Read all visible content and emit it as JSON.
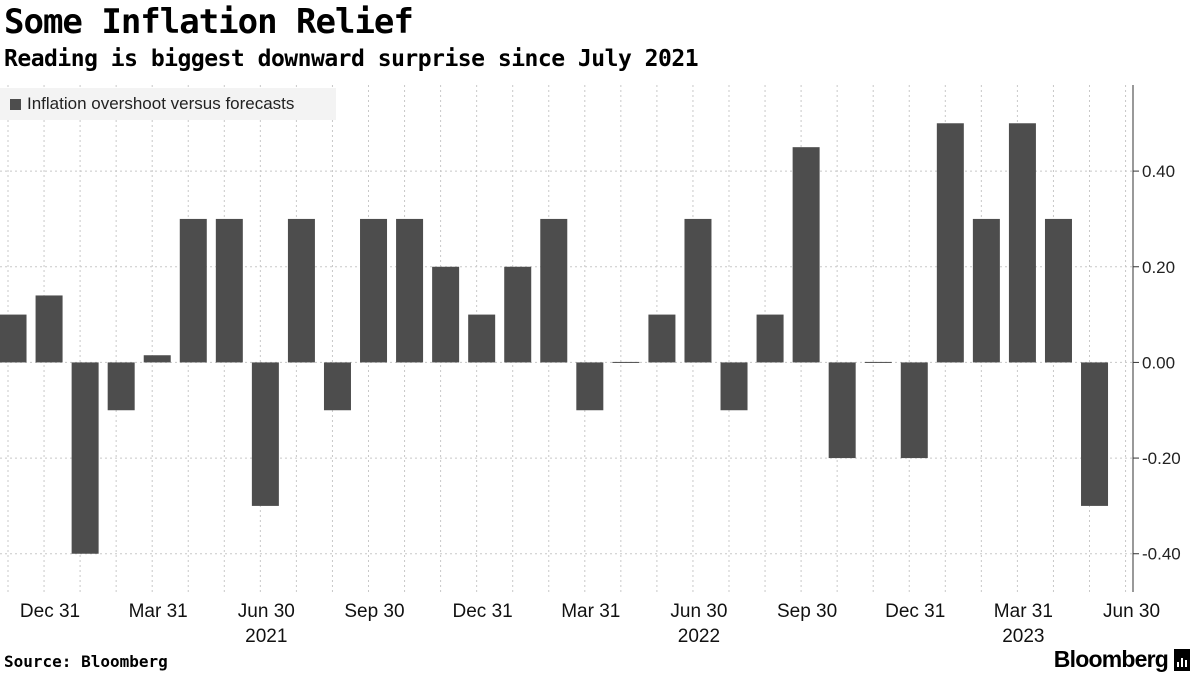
{
  "header": {
    "title": "Some Inflation Relief",
    "subtitle": "Reading is biggest downward surprise since July 2021"
  },
  "footer": {
    "source": "Source: Bloomberg",
    "brand": "Bloomberg"
  },
  "colors": {
    "bar": "#4d4d4d",
    "grid": "#c8c8c8",
    "axis": "#333333"
  },
  "chart_data": {
    "type": "bar",
    "title": "Some Inflation Relief",
    "subtitle": "Reading is biggest downward surprise since July 2021",
    "series": [
      {
        "name": "Inflation overshoot versus forecasts",
        "values": [
          0.1,
          0.14,
          -0.4,
          -0.1,
          0.015,
          0.3,
          0.3,
          -0.3,
          0.3,
          -0.1,
          0.3,
          0.3,
          0.2,
          0.1,
          0.2,
          0.3,
          -0.1,
          0.0,
          0.1,
          0.3,
          -0.1,
          0.1,
          0.45,
          -0.2,
          0.0,
          -0.2,
          0.5,
          0.3,
          0.5,
          0.3,
          -0.3
        ]
      }
    ],
    "x_ticks": [
      {
        "index": 0.5,
        "label": "Dec 31"
      },
      {
        "index": 3.5,
        "label": "Mar 31"
      },
      {
        "index": 6.5,
        "label": "Jun 30"
      },
      {
        "index": 9.5,
        "label": "Sep 30"
      },
      {
        "index": 12.5,
        "label": "Dec 31"
      },
      {
        "index": 15.5,
        "label": "Mar 31"
      },
      {
        "index": 18.5,
        "label": "Jun 30"
      },
      {
        "index": 21.5,
        "label": "Sep 30"
      },
      {
        "index": 24.5,
        "label": "Dec 31"
      },
      {
        "index": 27.5,
        "label": "Mar 31"
      },
      {
        "index": 30.5,
        "label": "Jun 30"
      }
    ],
    "year_labels": [
      {
        "index": 6.5,
        "label": "2021"
      },
      {
        "index": 18.5,
        "label": "2022"
      },
      {
        "index": 27.5,
        "label": "2023"
      }
    ],
    "y_ticks": [
      0.4,
      0.2,
      0.0,
      -0.2,
      -0.4
    ],
    "y_tick_labels": [
      "0.40",
      "0.20",
      "0.00",
      "-0.20",
      "-0.40"
    ],
    "ylim": [
      -0.48,
      0.58
    ],
    "grid": true,
    "legend_position": "top-left",
    "y_axis_side": "right"
  }
}
